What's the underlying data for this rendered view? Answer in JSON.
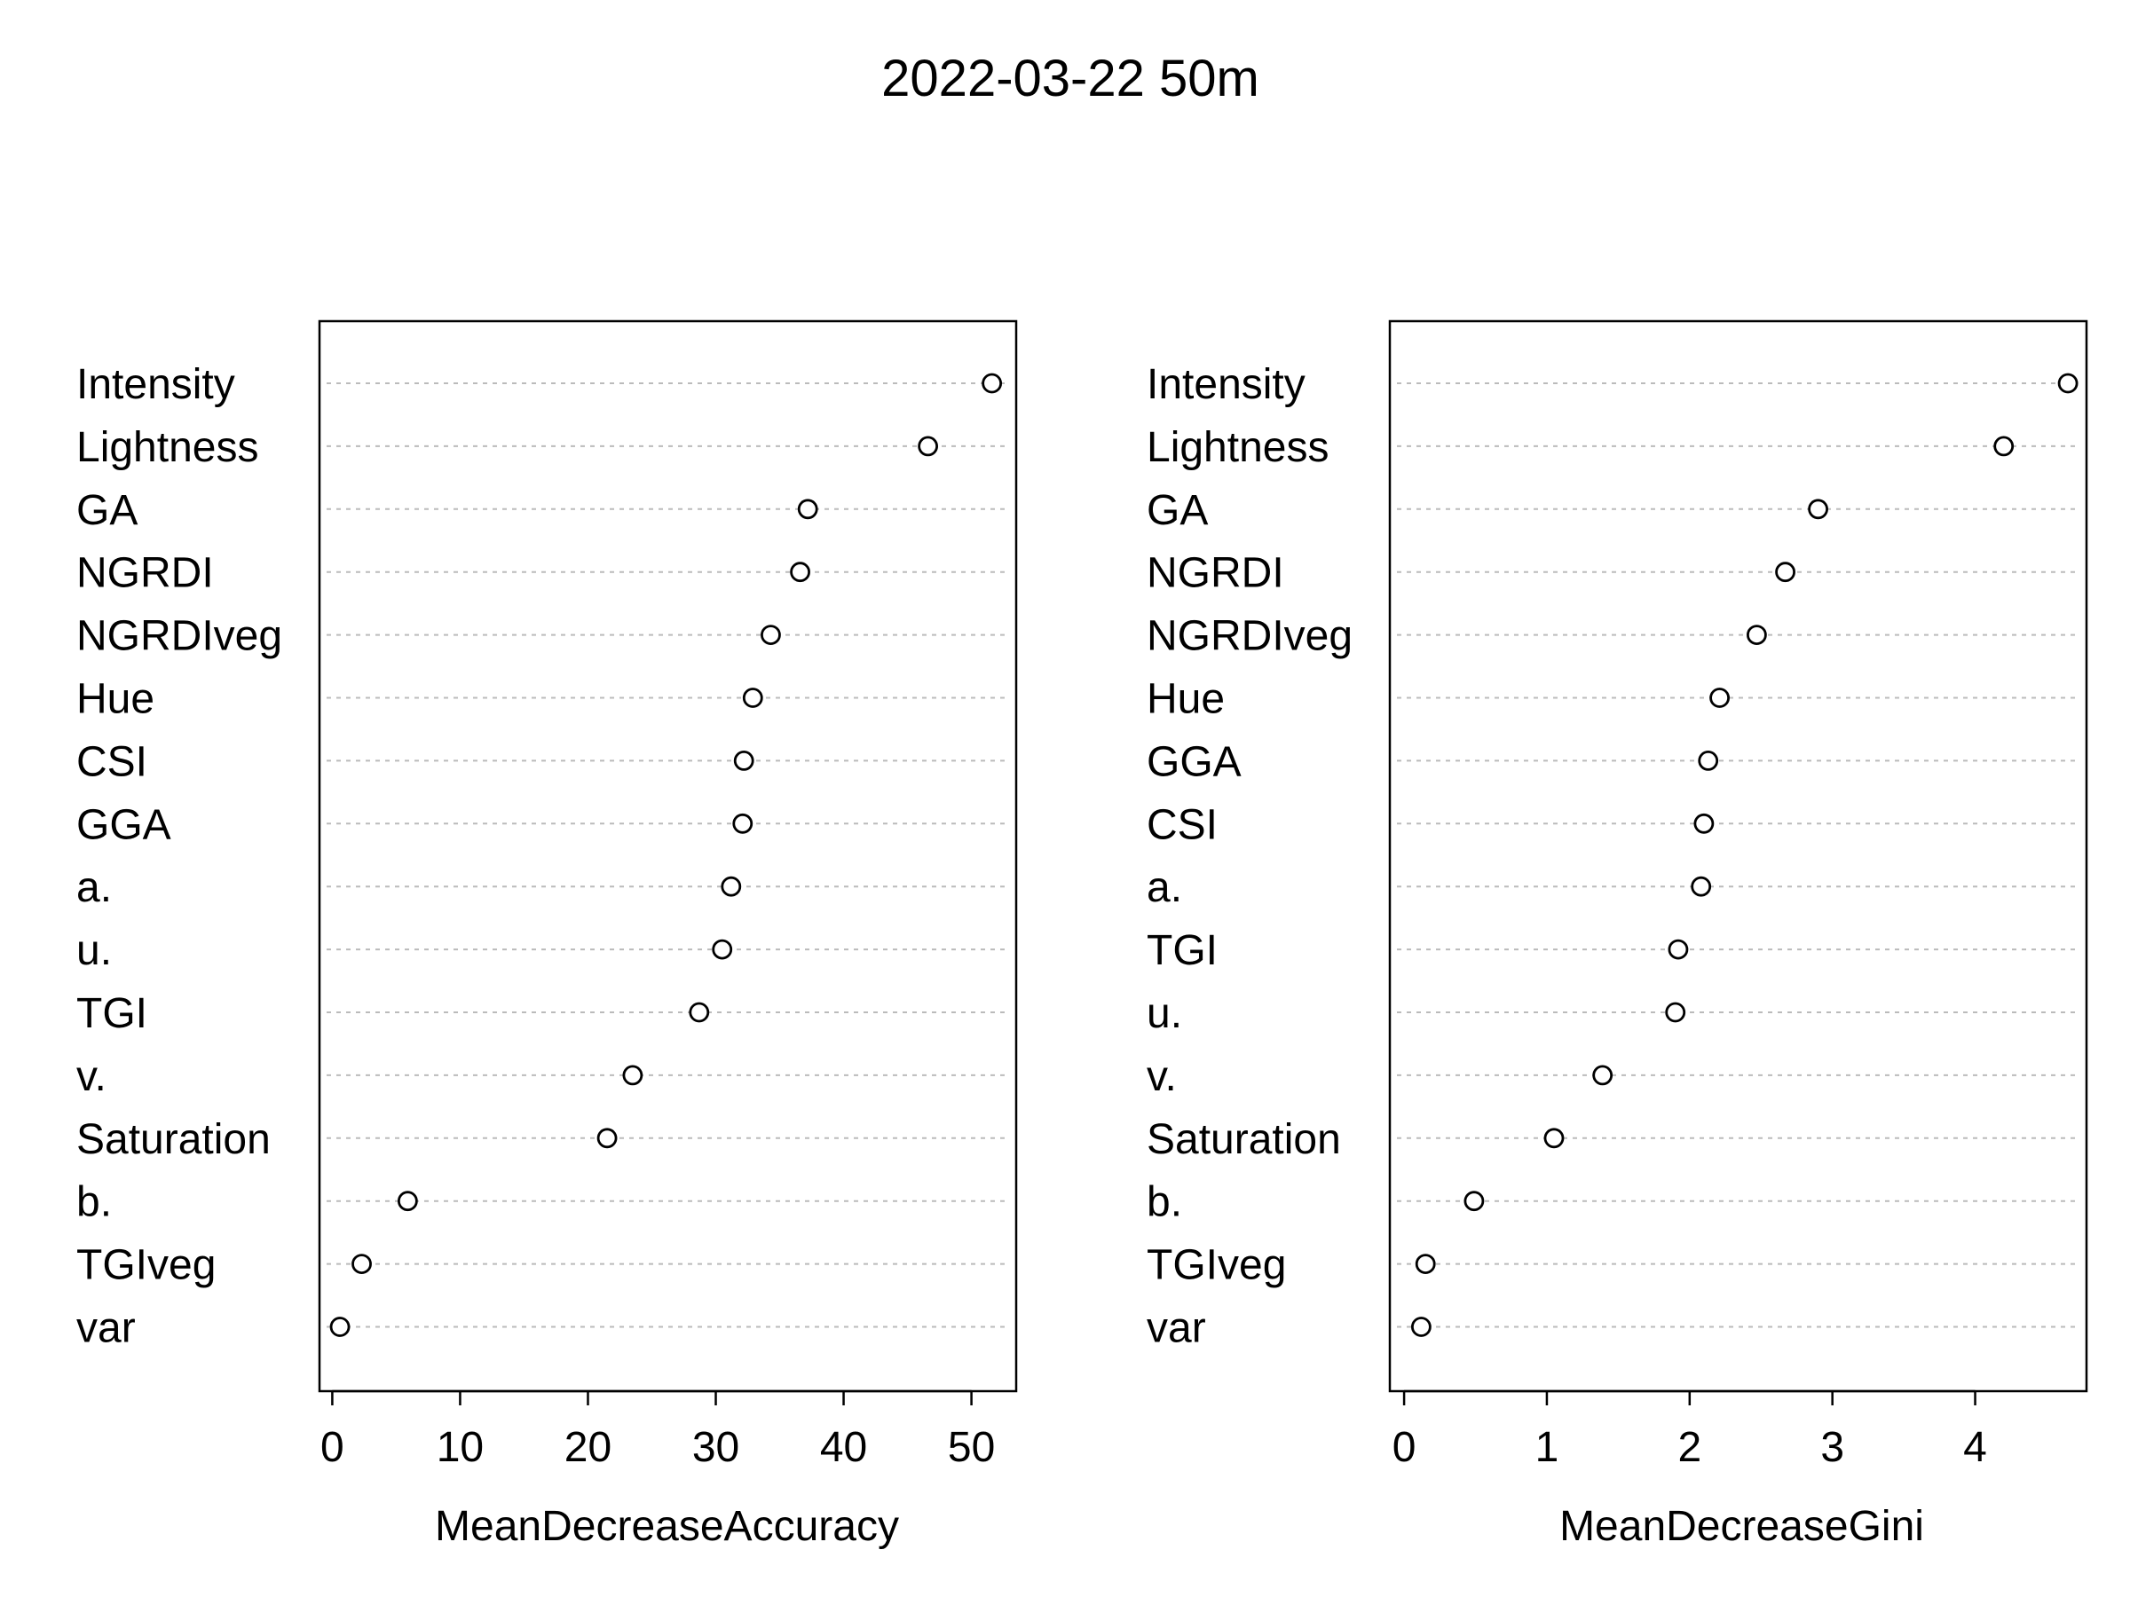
{
  "title": "2022-03-22 50m",
  "chart_data": [
    {
      "type": "scatter",
      "xlabel": "MeanDecreaseAccuracy",
      "ylabel": "",
      "xlim": [
        -1,
        53.5
      ],
      "xticks": [
        0,
        10,
        20,
        30,
        40,
        50
      ],
      "grid": "dotted horizontal",
      "categories": [
        "Intensity",
        "Lightness",
        "GA",
        "NGRDI",
        "NGRDIveg",
        "Hue",
        "CSI",
        "GGA",
        "a.",
        "u.",
        "TGI",
        "v.",
        "Saturation",
        "b.",
        "TGIveg",
        "var"
      ],
      "values": [
        51.6,
        46.6,
        37.2,
        36.6,
        34.3,
        32.9,
        32.2,
        32.1,
        31.2,
        30.5,
        28.7,
        23.5,
        21.5,
        5.9,
        2.3,
        0.6
      ]
    },
    {
      "type": "scatter",
      "xlabel": "MeanDecreaseGini",
      "ylabel": "",
      "xlim": [
        -0.1,
        4.78
      ],
      "xticks": [
        0,
        1,
        2,
        3,
        4
      ],
      "grid": "dotted horizontal",
      "categories": [
        "Intensity",
        "Lightness",
        "GA",
        "NGRDI",
        "NGRDIveg",
        "Hue",
        "GGA",
        "CSI",
        "a.",
        "TGI",
        "u.",
        "v.",
        "Saturation",
        "b.",
        "TGIveg",
        "var"
      ],
      "values": [
        4.65,
        4.2,
        2.9,
        2.67,
        2.47,
        2.21,
        2.13,
        2.1,
        2.08,
        1.92,
        1.9,
        1.39,
        1.05,
        0.49,
        0.15,
        0.12
      ]
    }
  ]
}
